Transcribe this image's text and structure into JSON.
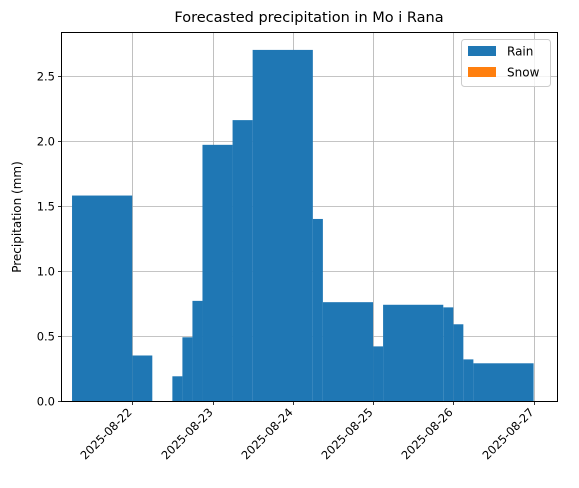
{
  "chart_data": {
    "type": "bar",
    "title": "Forecasted precipitation in Mo i Rana",
    "xlabel": "",
    "ylabel": "Precipitation (mm)",
    "x_tick_labels": [
      "2025-08-22",
      "2025-08-23",
      "2025-08-24",
      "2025-08-25",
      "2025-08-26",
      "2025-08-27"
    ],
    "y_tick_labels": [
      "0.0",
      "0.5",
      "1.0",
      "1.5",
      "2.0",
      "2.5"
    ],
    "y_ticks": [
      0.0,
      0.5,
      1.0,
      1.5,
      2.0,
      2.5
    ],
    "ylim": [
      0,
      2.83
    ],
    "xlim": [
      "2025-08-21 03:00",
      "2025-08-27 07:00"
    ],
    "grid": true,
    "legend_position": "top-right",
    "series": [
      {
        "name": "Rain",
        "color": "#1f77b4",
        "bars": [
          {
            "start": "2025-08-21 06:00",
            "end": "2025-08-22 00:00",
            "value": 1.58
          },
          {
            "start": "2025-08-22 00:00",
            "end": "2025-08-22 06:00",
            "value": 0.35
          },
          {
            "start": "2025-08-22 12:00",
            "end": "2025-08-22 15:00",
            "value": 0.19
          },
          {
            "start": "2025-08-22 15:00",
            "end": "2025-08-22 18:00",
            "value": 0.49
          },
          {
            "start": "2025-08-22 18:00",
            "end": "2025-08-22 21:00",
            "value": 0.77
          },
          {
            "start": "2025-08-22 21:00",
            "end": "2025-08-23 06:00",
            "value": 1.97
          },
          {
            "start": "2025-08-23 06:00",
            "end": "2025-08-23 12:00",
            "value": 2.16
          },
          {
            "start": "2025-08-23 12:00",
            "end": "2025-08-24 06:00",
            "value": 2.7
          },
          {
            "start": "2025-08-24 06:00",
            "end": "2025-08-24 09:00",
            "value": 1.4
          },
          {
            "start": "2025-08-24 09:00",
            "end": "2025-08-25 00:00",
            "value": 0.76
          },
          {
            "start": "2025-08-25 00:00",
            "end": "2025-08-25 03:00",
            "value": 0.42
          },
          {
            "start": "2025-08-25 03:00",
            "end": "2025-08-25 21:00",
            "value": 0.74
          },
          {
            "start": "2025-08-25 21:00",
            "end": "2025-08-26 00:00",
            "value": 0.72
          },
          {
            "start": "2025-08-26 00:00",
            "end": "2025-08-26 03:00",
            "value": 0.59
          },
          {
            "start": "2025-08-26 03:00",
            "end": "2025-08-26 06:00",
            "value": 0.32
          },
          {
            "start": "2025-08-26 06:00",
            "end": "2025-08-27 00:00",
            "value": 0.29
          }
        ]
      },
      {
        "name": "Snow",
        "color": "#ff7f0e",
        "bars": []
      }
    ]
  }
}
